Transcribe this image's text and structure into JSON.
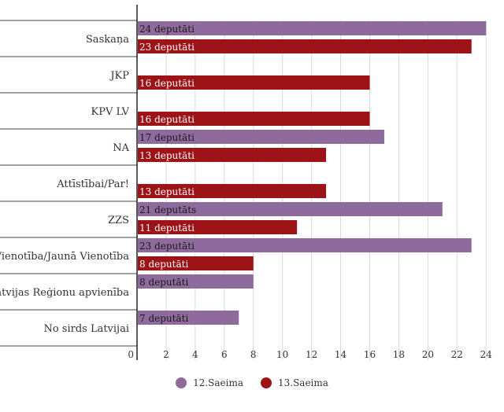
{
  "chart_data": {
    "type": "bar",
    "orientation": "horizontal",
    "categories": [
      "Saskaņa",
      "JKP",
      "KPV LV",
      "NA",
      "Attīstībai/Par!",
      "ZZS",
      "Vienotība/Jaunā Vienotība",
      "Latvijas Reģionu apvienība",
      "No sirds Latvijai"
    ],
    "series": [
      {
        "name": "12.Saeima",
        "color": "#8e6a9d",
        "values": [
          24,
          null,
          null,
          17,
          null,
          21,
          23,
          8,
          7
        ],
        "labels": [
          "24 deputāti",
          "",
          "",
          "17 deputāti",
          "",
          "21 deputāts",
          "23 deputāti",
          "8 deputāti",
          "7 deputāti"
        ]
      },
      {
        "name": "13.Saeima",
        "color": "#9c1318",
        "values": [
          23,
          16,
          16,
          13,
          13,
          11,
          8,
          null,
          null
        ],
        "labels": [
          "23 deputāti",
          "16 deputāti",
          "16 deputāti",
          "13 deputāti",
          "13 deputāti",
          "11 deputāti",
          "8 deputāti",
          "",
          ""
        ]
      }
    ],
    "xticks": [
      0,
      2,
      4,
      6,
      8,
      10,
      12,
      14,
      16,
      18,
      20,
      22,
      24
    ],
    "xlim": [
      0,
      24.8
    ],
    "grid": true,
    "legend_position": "bottom"
  }
}
